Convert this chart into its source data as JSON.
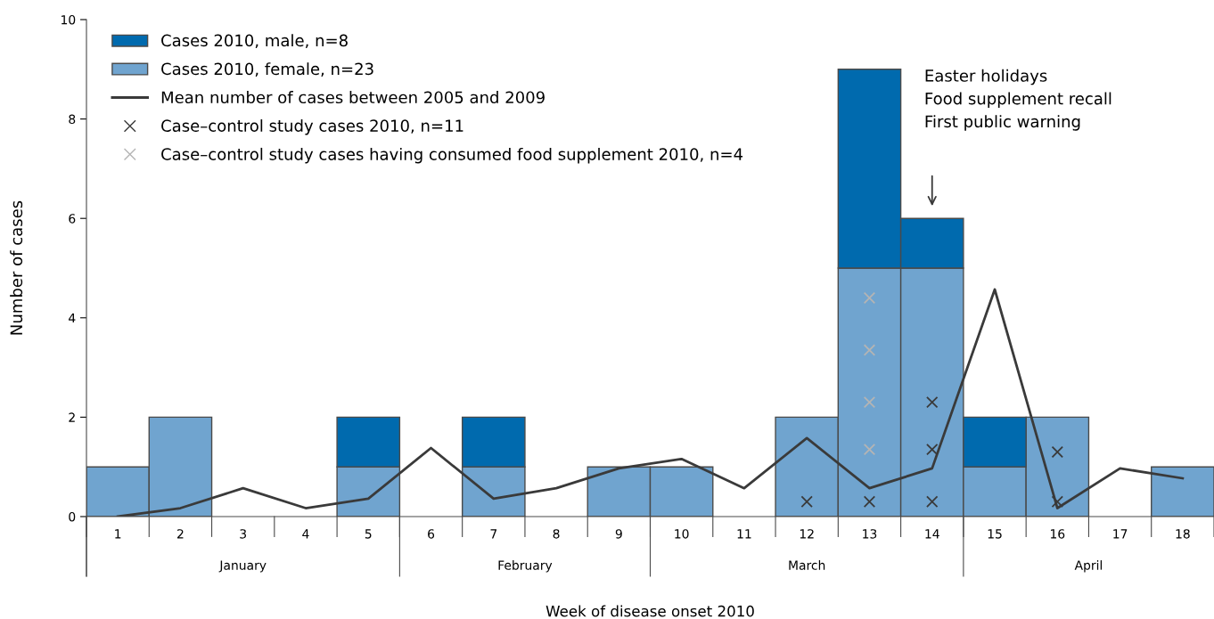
{
  "chart_data": {
    "type": "bar",
    "stacked": true,
    "xlabel": "Week of disease onset 2010",
    "ylabel": "Number of cases",
    "categories": [
      "1",
      "2",
      "3",
      "4",
      "5",
      "6",
      "7",
      "8",
      "9",
      "10",
      "11",
      "12",
      "13",
      "14",
      "15",
      "16",
      "17",
      "18"
    ],
    "series": [
      {
        "name": "Cases 2010, female, n=23",
        "color": "#70a4cf",
        "values": [
          1,
          2,
          0,
          0,
          1,
          0,
          1,
          0,
          1,
          1,
          0,
          2,
          5,
          5,
          1,
          2,
          0,
          1
        ]
      },
      {
        "name": "Cases 2010, male, n=8",
        "color": "#006aae",
        "values": [
          0,
          0,
          0,
          0,
          1,
          0,
          1,
          0,
          0,
          0,
          0,
          0,
          4,
          1,
          1,
          0,
          0,
          0
        ]
      },
      {
        "name": "Mean number of cases between 2005 and 2009",
        "type": "line",
        "color": "#3a3a3a",
        "marker": "none",
        "line_style": "solid",
        "values": [
          0,
          0.17,
          0.57,
          0.17,
          0.36,
          1.38,
          0.36,
          0.57,
          0.97,
          1.16,
          0.57,
          1.58,
          0.57,
          0.97,
          4.57,
          0.17,
          0.97,
          0.77
        ]
      },
      {
        "name": "Case–control study cases 2010, n=11",
        "type": "scatter",
        "color": "#3a3a3a",
        "marker": "cross",
        "x": [
          "12",
          "13",
          "14",
          "14",
          "14",
          "16",
          "16"
        ],
        "values": [
          0.3,
          0.3,
          0.3,
          1.35,
          2.3,
          0.3,
          1.3
        ]
      },
      {
        "name": "Case–control study cases having consumed food supplement 2010, n=4",
        "type": "scatter",
        "color": "#b4b4b4",
        "marker": "cross",
        "x": [
          "13",
          "13",
          "13",
          "13"
        ],
        "values": [
          1.35,
          2.3,
          3.35,
          4.4
        ]
      }
    ],
    "ylim": [
      0,
      10
    ],
    "yticks": [
      0,
      2,
      4,
      6,
      8,
      10
    ],
    "grid": false,
    "legend": "top left",
    "annotations": [
      "Easter holidays\nFood supplement recall\nFirst public warning",
      "January",
      "February",
      "March",
      "April"
    ]
  }
}
